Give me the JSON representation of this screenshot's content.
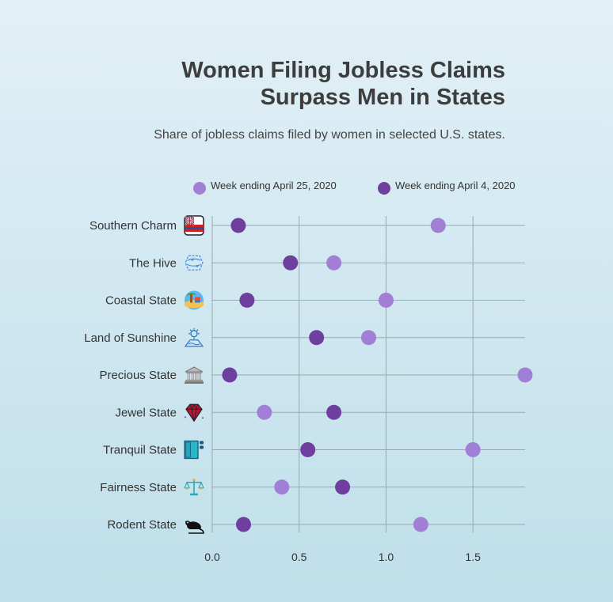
{
  "title_line1": "Women Filing Jobless Claims",
  "title_line2": "Surpass Men in States",
  "subtitle": "Share of jobless claims filed by women in selected U.S. states.",
  "chart_data": {
    "type": "dot",
    "title": "Women Filing Jobless Claims Surpass Men in States",
    "subtitle": "Share of jobless claims filed by women in selected U.S. states.",
    "categories": [
      "Southern Charm",
      "The Hive",
      "Coastal State",
      "Land of Sunshine",
      "Precious State",
      "Jewel State",
      "Tranquil State",
      "Fairness State",
      "Rodent State"
    ],
    "icons": [
      "flag-icon",
      "beehive-icon",
      "beach-icon",
      "sun-icon",
      "bank-icon",
      "gem-icon",
      "door-icon",
      "scales-icon",
      "rat-icon"
    ],
    "series": [
      {
        "name": "Week ending April 25, 2020",
        "color": "#a17fd4",
        "values": [
          1.3,
          0.7,
          1.0,
          0.9,
          1.8,
          0.3,
          1.5,
          0.4,
          1.2
        ]
      },
      {
        "name": "Week ending April 4, 2020",
        "color": "#6e3f9e",
        "values": [
          0.15,
          0.45,
          0.2,
          0.6,
          0.1,
          0.7,
          0.55,
          0.75,
          0.18
        ]
      }
    ],
    "xlim": [
      0,
      1.8
    ],
    "xticks": [
      "0.0",
      "0.5",
      "1.0",
      "1.5"
    ],
    "grid": true,
    "legend": "top"
  }
}
